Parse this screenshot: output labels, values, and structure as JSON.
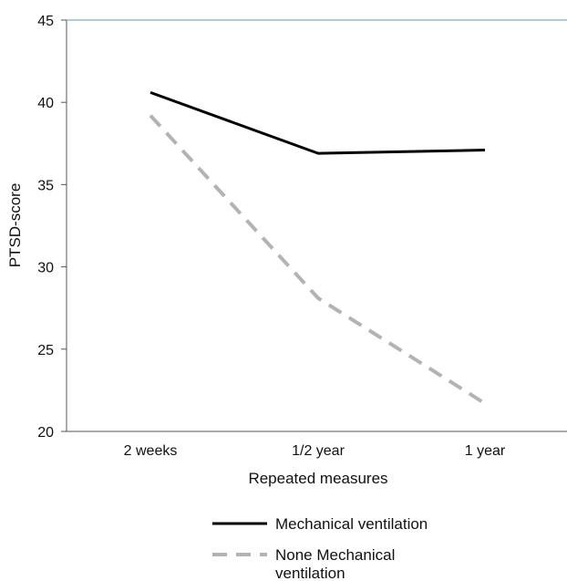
{
  "chart_data": {
    "type": "line",
    "categories": [
      "2 weeks",
      "1/2 year",
      "1 year"
    ],
    "series": [
      {
        "name": "Mechanical ventilation",
        "legend_lines": [
          "Mechanical ventilation"
        ],
        "values": [
          40.6,
          36.9,
          37.1
        ],
        "color": "#000000",
        "dashed": false
      },
      {
        "name": "None Mechanical ventilation",
        "legend_lines": [
          "None Mechanical",
          "ventilation"
        ],
        "values": [
          39.2,
          28.1,
          21.7
        ],
        "color": "#b3b3b3",
        "dashed": true
      }
    ],
    "title": "",
    "xlabel": "Repeated measures",
    "ylabel": "PTSD-score",
    "ylim": [
      20,
      45
    ],
    "yticks": [
      20,
      25,
      30,
      35,
      40,
      45
    ],
    "grid": false,
    "top_line_color": "#5b9bbf",
    "legend_position": "bottom-center"
  }
}
